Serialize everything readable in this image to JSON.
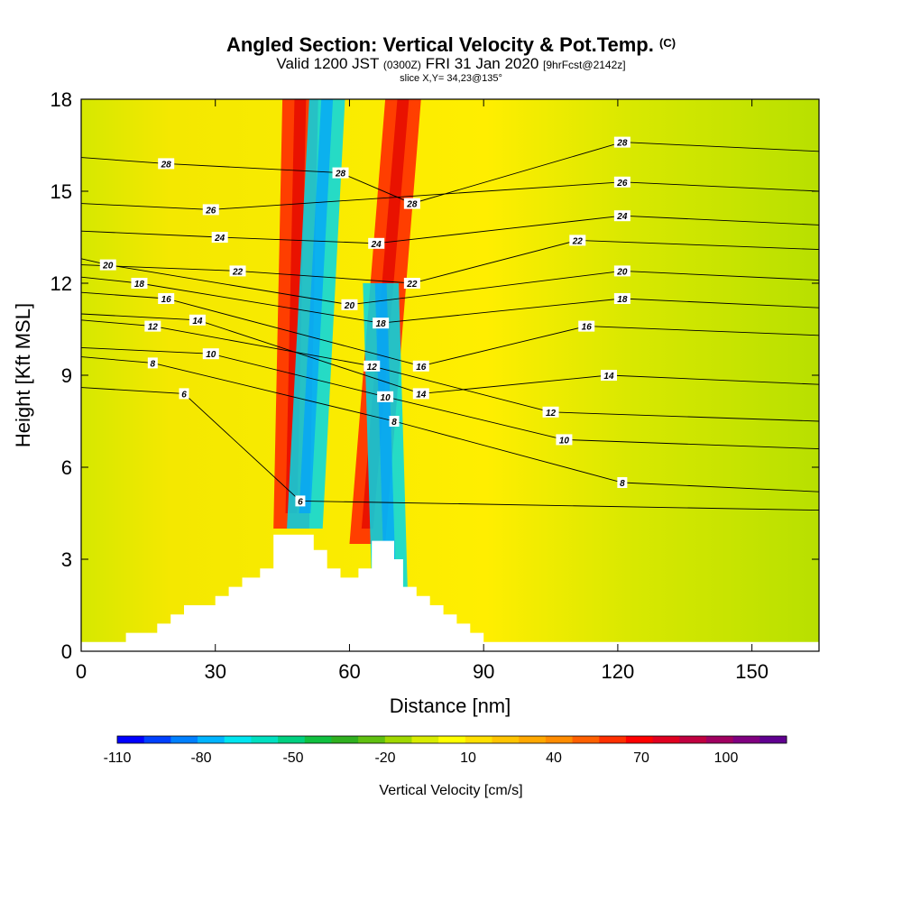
{
  "title": {
    "line1": "Angled Section: Vertical Velocity & Pot.Temp.",
    "line1_tag": "(C)",
    "line2_a": "Valid 1200 JST",
    "line2_b": "(0300Z)",
    "line2_c": "FRI 31 Jan 2020",
    "line2_d": "[9hrFcst@2142z]",
    "line3": "slice X,Y= 34,23@135°"
  },
  "chart_data": {
    "type": "heatmap",
    "xlabel": "Distance [nm]",
    "ylabel": "Height [Kft MSL]",
    "xlim": [
      0,
      165
    ],
    "ylim": [
      0,
      18
    ],
    "x_ticks": [
      0,
      30,
      60,
      90,
      120,
      150
    ],
    "y_ticks": [
      0,
      3,
      6,
      9,
      12,
      15,
      18
    ],
    "background_field": "weak vertical velocity (~0 to 30 cm/s) with downdraft/updraft bands near 50 nm and 70 nm",
    "features": [
      {
        "kind": "updraft",
        "x_bottom": 47,
        "x_top": 49,
        "y_range": [
          4,
          18
        ],
        "peak": 80
      },
      {
        "kind": "downdraft",
        "x_bottom": 50,
        "x_top": 55,
        "y_range": [
          4,
          18
        ],
        "peak": -70
      },
      {
        "kind": "updraft",
        "x_bottom": 64,
        "x_top": 72,
        "y_range": [
          3.5,
          18
        ],
        "peak": 90
      },
      {
        "kind": "downdraft",
        "x_bottom": 69,
        "x_top": 67,
        "y_range": [
          2,
          12
        ],
        "peak": -80
      }
    ],
    "terrain_profile": [
      [
        0,
        0.3
      ],
      [
        10,
        0.3
      ],
      [
        10,
        0.6
      ],
      [
        17,
        0.6
      ],
      [
        17,
        0.9
      ],
      [
        20,
        0.9
      ],
      [
        20,
        1.2
      ],
      [
        23,
        1.2
      ],
      [
        23,
        1.5
      ],
      [
        30,
        1.5
      ],
      [
        30,
        1.8
      ],
      [
        33,
        1.8
      ],
      [
        33,
        2.1
      ],
      [
        36,
        2.1
      ],
      [
        36,
        2.4
      ],
      [
        40,
        2.4
      ],
      [
        40,
        2.7
      ],
      [
        43,
        2.7
      ],
      [
        43,
        3.0
      ],
      [
        43,
        3.0
      ],
      [
        43,
        3.3
      ],
      [
        43,
        3.3
      ],
      [
        43,
        3.8
      ],
      [
        52,
        3.8
      ],
      [
        52,
        3.3
      ],
      [
        55,
        3.3
      ],
      [
        55,
        2.7
      ],
      [
        58,
        2.7
      ],
      [
        58,
        2.4
      ],
      [
        62,
        2.4
      ],
      [
        62,
        2.7
      ],
      [
        65,
        2.7
      ],
      [
        65,
        3.6
      ],
      [
        70,
        3.6
      ],
      [
        70,
        3.0
      ],
      [
        72,
        3.0
      ],
      [
        72,
        2.1
      ],
      [
        75,
        2.1
      ],
      [
        75,
        1.8
      ],
      [
        78,
        1.8
      ],
      [
        78,
        1.5
      ],
      [
        81,
        1.5
      ],
      [
        81,
        1.2
      ],
      [
        84,
        1.2
      ],
      [
        84,
        0.9
      ],
      [
        87,
        0.9
      ],
      [
        87,
        0.6
      ],
      [
        90,
        0.6
      ],
      [
        90,
        0.3
      ],
      [
        165,
        0.3
      ]
    ],
    "contour_labels": [
      {
        "text": "28",
        "x": 19,
        "y": 15.9
      },
      {
        "text": "28",
        "x": 58,
        "y": 15.6
      },
      {
        "text": "28",
        "x": 74,
        "y": 14.6
      },
      {
        "text": "28",
        "x": 121,
        "y": 16.6
      },
      {
        "text": "26",
        "x": 29,
        "y": 14.4
      },
      {
        "text": "26",
        "x": 121,
        "y": 15.3
      },
      {
        "text": "24",
        "x": 31,
        "y": 13.5
      },
      {
        "text": "24",
        "x": 66,
        "y": 13.3
      },
      {
        "text": "24",
        "x": 121,
        "y": 14.2
      },
      {
        "text": "22",
        "x": 35,
        "y": 12.4
      },
      {
        "text": "22",
        "x": 74,
        "y": 12.0
      },
      {
        "text": "22",
        "x": 111,
        "y": 13.4
      },
      {
        "text": "20",
        "x": 6,
        "y": 12.6
      },
      {
        "text": "20",
        "x": 60,
        "y": 11.3
      },
      {
        "text": "20",
        "x": 121,
        "y": 12.4
      },
      {
        "text": "18",
        "x": 13,
        "y": 12.0
      },
      {
        "text": "18",
        "x": 67,
        "y": 10.7
      },
      {
        "text": "18",
        "x": 121,
        "y": 11.5
      },
      {
        "text": "16",
        "x": 19,
        "y": 11.5
      },
      {
        "text": "16",
        "x": 76,
        "y": 9.3
      },
      {
        "text": "16",
        "x": 113,
        "y": 10.6
      },
      {
        "text": "14",
        "x": 26,
        "y": 10.8
      },
      {
        "text": "14",
        "x": 76,
        "y": 8.4
      },
      {
        "text": "14",
        "x": 118,
        "y": 9.0
      },
      {
        "text": "12",
        "x": 16,
        "y": 10.6
      },
      {
        "text": "12",
        "x": 65,
        "y": 9.3
      },
      {
        "text": "12",
        "x": 105,
        "y": 7.8
      },
      {
        "text": "10",
        "x": 29,
        "y": 9.7
      },
      {
        "text": "10",
        "x": 68,
        "y": 8.3
      },
      {
        "text": "10",
        "x": 108,
        "y": 6.9
      },
      {
        "text": "8",
        "x": 16,
        "y": 9.4
      },
      {
        "text": "8",
        "x": 70,
        "y": 7.5
      },
      {
        "text": "8",
        "x": 121,
        "y": 5.5
      },
      {
        "text": "6",
        "x": 23,
        "y": 8.4
      },
      {
        "text": "6",
        "x": 49,
        "y": 4.9
      }
    ]
  },
  "colorbar": {
    "label": "Vertical Velocity [cm/s]",
    "ticks": [
      "-110",
      "-80",
      "-50",
      "-20",
      "10",
      "40",
      "70",
      "100"
    ],
    "colors": [
      "#0000ff",
      "#0040ff",
      "#0080ff",
      "#00b4ff",
      "#00e5f0",
      "#00e0c0",
      "#00d080",
      "#10c040",
      "#30b020",
      "#60c010",
      "#a0d800",
      "#d8ec00",
      "#ffff00",
      "#ffe000",
      "#ffc400",
      "#ffa800",
      "#ff8c00",
      "#ff6000",
      "#ff3000",
      "#ff0000",
      "#e00020",
      "#c00040",
      "#a00060",
      "#800080",
      "#600090"
    ]
  }
}
